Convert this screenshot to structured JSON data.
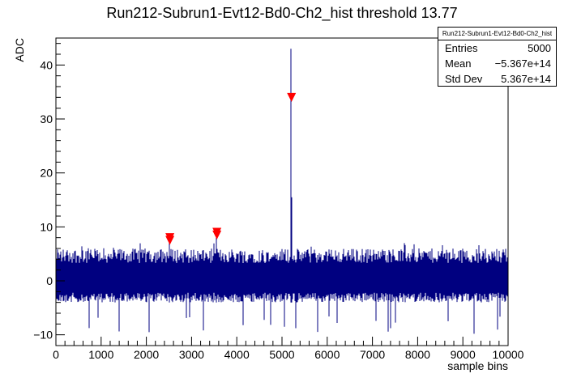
{
  "chart_data": {
    "type": "line",
    "title": "Run212-Subrun1-Evt12-Bd0-Ch2_hist threshold 13.77",
    "xlabel": "sample bins",
    "ylabel": "ADC",
    "xlim": [
      0,
      10000
    ],
    "ylim": [
      -12,
      45
    ],
    "x_ticks": [
      0,
      1000,
      2000,
      3000,
      4000,
      5000,
      6000,
      7000,
      8000,
      9000,
      10000
    ],
    "y_ticks": [
      -10,
      0,
      10,
      20,
      30,
      40
    ],
    "series": [
      {
        "color": "#000080",
        "noise_range": [
          -4,
          6
        ],
        "outlier_range": [
          -10,
          7
        ],
        "spikes": [
          {
            "x": 2500,
            "y": 8.5
          },
          {
            "x": 3550,
            "y": 9.2
          },
          {
            "x": 5200,
            "y": 43
          },
          {
            "x": 5210,
            "y": 15.5
          }
        ]
      }
    ],
    "markers": {
      "shape": "down-triangle",
      "color": "#ff0000",
      "points": [
        {
          "x": 2520,
          "y": 8.0
        },
        {
          "x": 2520,
          "y": 7.5
        },
        {
          "x": 3560,
          "y": 9.0
        },
        {
          "x": 3560,
          "y": 8.5
        },
        {
          "x": 5210,
          "y": 34.0
        }
      ]
    },
    "stats": {
      "title": "Run212-Subrun1-Evt12-Bd0-Ch2_hist",
      "entries_label": "Entries",
      "entries_value": "5000",
      "mean_label": "Mean",
      "mean_value": "−5.367e+14",
      "stddev_label": "Std Dev",
      "stddev_value": "5.367e+14"
    }
  }
}
